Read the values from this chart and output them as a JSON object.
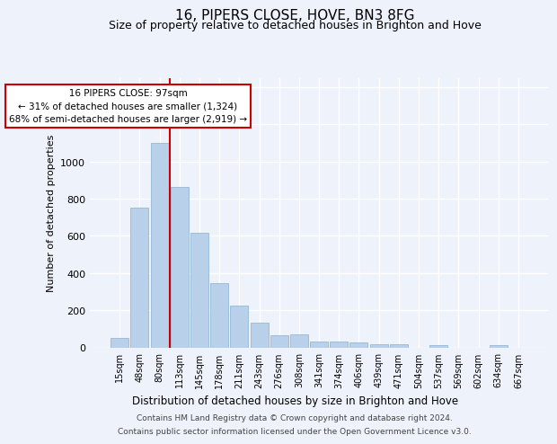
{
  "title": "16, PIPERS CLOSE, HOVE, BN3 8FG",
  "subtitle": "Size of property relative to detached houses in Brighton and Hove",
  "xlabel": "Distribution of detached houses by size in Brighton and Hove",
  "ylabel": "Number of detached properties",
  "footer_line1": "Contains HM Land Registry data © Crown copyright and database right 2024.",
  "footer_line2": "Contains public sector information licensed under the Open Government Licence v3.0.",
  "annotation_line1": "   16 PIPERS CLOSE: 97sqm   ",
  "annotation_line2": "← 31% of detached houses are smaller (1,324)",
  "annotation_line3": "68% of semi-detached houses are larger (2,919) →",
  "bar_color": "#b8d0ea",
  "bar_edge_color": "#8ab0d0",
  "vline_color": "#cc0000",
  "vline_x_idx": 2.5,
  "categories": [
    "15sqm",
    "48sqm",
    "80sqm",
    "113sqm",
    "145sqm",
    "178sqm",
    "211sqm",
    "243sqm",
    "276sqm",
    "308sqm",
    "341sqm",
    "374sqm",
    "406sqm",
    "439sqm",
    "471sqm",
    "504sqm",
    "537sqm",
    "569sqm",
    "602sqm",
    "634sqm",
    "667sqm"
  ],
  "values": [
    50,
    750,
    1100,
    865,
    615,
    345,
    225,
    135,
    65,
    70,
    30,
    30,
    25,
    15,
    15,
    0,
    10,
    0,
    0,
    10,
    0
  ],
  "ylim": [
    0,
    1450
  ],
  "yticks": [
    0,
    200,
    400,
    600,
    800,
    1000,
    1200,
    1400
  ],
  "background_color": "#eef2fa",
  "grid_color": "#ffffff",
  "title_fontsize": 11,
  "subtitle_fontsize": 9,
  "footer_fontsize": 6.5
}
